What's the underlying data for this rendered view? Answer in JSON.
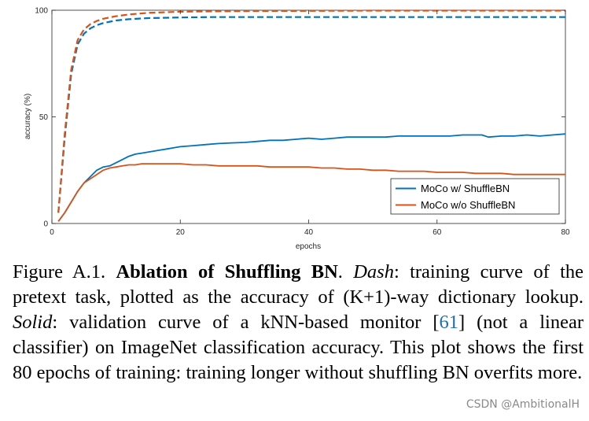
{
  "chart_data": {
    "type": "line",
    "xlabel": "epochs",
    "ylabel": "accuracy (%)",
    "xlim": [
      0,
      80
    ],
    "ylim": [
      0,
      100
    ],
    "xticks": [
      0,
      20,
      40,
      60,
      80
    ],
    "yticks": [
      0,
      50,
      100
    ],
    "grid": false,
    "legend_position": "bottom-right",
    "colors": {
      "with_shuffle": "#0072BD",
      "without_shuffle": "#D95319"
    },
    "series": [
      {
        "name": "MoCo w/  ShuffleBN",
        "style": "solid",
        "color": "#0072BD",
        "x": [
          1,
          2,
          3,
          4,
          5,
          6,
          7,
          8,
          9,
          10,
          11,
          12,
          13,
          14,
          15,
          16,
          17,
          18,
          19,
          20,
          22,
          24,
          26,
          28,
          30,
          32,
          34,
          36,
          38,
          40,
          42,
          44,
          46,
          48,
          50,
          52,
          54,
          56,
          58,
          60,
          62,
          64,
          66,
          67,
          68,
          70,
          72,
          74,
          76,
          78,
          80
        ],
        "y": [
          1,
          5,
          10,
          15,
          19,
          22,
          25,
          26.5,
          27,
          28.5,
          30,
          31.5,
          32.5,
          33,
          33.5,
          34,
          34.5,
          35,
          35.5,
          36,
          36.5,
          37,
          37.5,
          37.8,
          38,
          38.5,
          39,
          39,
          39.5,
          40,
          39.5,
          40,
          40.5,
          40.5,
          40.5,
          40.5,
          41,
          41,
          41,
          41,
          41,
          41.5,
          41.5,
          41.5,
          40.5,
          41,
          41,
          41.5,
          41,
          41.5,
          42
        ]
      },
      {
        "name": "MoCo w/o ShuffleBN",
        "style": "solid",
        "color": "#D95319",
        "x": [
          1,
          2,
          3,
          4,
          5,
          6,
          7,
          8,
          9,
          10,
          11,
          12,
          13,
          14,
          15,
          16,
          17,
          18,
          19,
          20,
          22,
          24,
          26,
          28,
          30,
          32,
          34,
          36,
          38,
          40,
          42,
          44,
          46,
          48,
          50,
          52,
          54,
          56,
          58,
          60,
          62,
          64,
          66,
          68,
          70,
          72,
          74,
          76,
          78,
          80
        ],
        "y": [
          1,
          5,
          10,
          15,
          19,
          21,
          23,
          25,
          26,
          26.5,
          27,
          27.5,
          27.5,
          28,
          28,
          28,
          28,
          28,
          28,
          28,
          27.5,
          27.5,
          27,
          27,
          27,
          27,
          26.5,
          26.5,
          26.5,
          26.5,
          26,
          26,
          25.5,
          25.5,
          25,
          25,
          24.5,
          24.5,
          24.5,
          24,
          24,
          24,
          23.5,
          23.5,
          23.5,
          23,
          23,
          23,
          23,
          23
        ]
      },
      {
        "name": "MoCo w/  ShuffleBN (pretext)",
        "style": "dash",
        "color": "#0072BD",
        "legend": false,
        "x": [
          1,
          2,
          3,
          4,
          5,
          6,
          7,
          8,
          10,
          12,
          15,
          20,
          25,
          30,
          40,
          50,
          60,
          70,
          80
        ],
        "y": [
          5,
          40,
          70,
          84,
          89,
          91.5,
          93,
          94,
          95.2,
          95.8,
          96.3,
          96.6,
          96.8,
          96.8,
          96.8,
          96.8,
          96.8,
          96.8,
          96.8
        ]
      },
      {
        "name": "MoCo w/o ShuffleBN (pretext)",
        "style": "dash",
        "color": "#D95319",
        "legend": false,
        "x": [
          1,
          2,
          3,
          4,
          5,
          6,
          7,
          8,
          10,
          12,
          15,
          20,
          25,
          30,
          40,
          50,
          60,
          70,
          80
        ],
        "y": [
          5,
          42,
          72,
          86,
          91,
          93.5,
          95,
          96,
          97.2,
          98,
          98.8,
          99.3,
          99.5,
          99.6,
          99.7,
          99.8,
          99.8,
          99.8,
          99.8
        ]
      }
    ]
  },
  "caption": {
    "prefix": "Figure A.1.",
    "bold_title": "Ablation of Shuffling BN",
    "after_title": ". ",
    "dash_label": "Dash",
    "dash_text": ": training curve of the pretext task, plotted as the accuracy of (K+1)-way dictionary lookup. ",
    "solid_label": "Solid",
    "solid_text_1": ": validation curve of a kNN-based monitor [",
    "citation": "61",
    "solid_text_2": "] (not a linear classifier) on ImageNet classification accuracy. This plot shows the first 80 epochs of training: training longer without shuffling BN overfits more."
  },
  "watermark": "CSDN @AmbitionalH"
}
